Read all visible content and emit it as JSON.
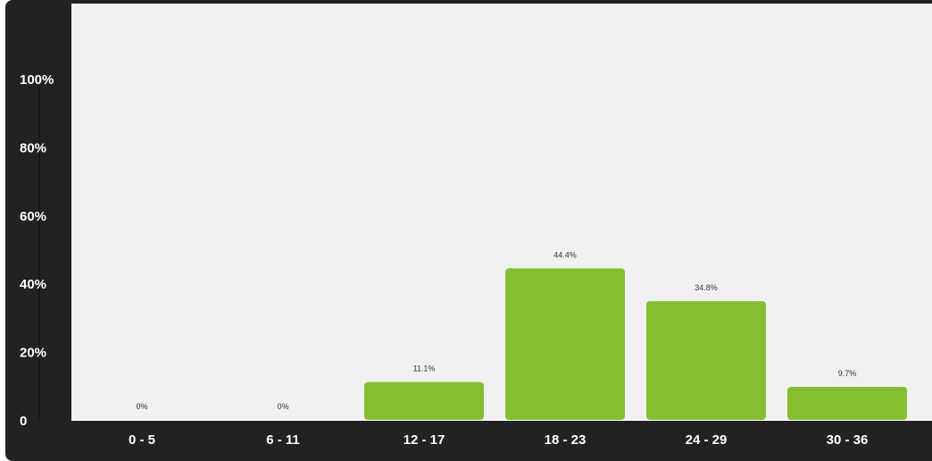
{
  "chart_data": {
    "type": "bar",
    "categories": [
      "0 - 5",
      "6 - 11",
      "12 - 17",
      "18 - 23",
      "24 - 29",
      "30 - 36"
    ],
    "values": [
      0,
      0,
      11.1,
      44.4,
      34.8,
      9.7
    ],
    "data_labels": [
      "0%",
      "0%",
      "11.1%",
      "44.4%",
      "34.8%",
      "9.7%"
    ],
    "y_ticks": [
      {
        "value": 0,
        "label": "0"
      },
      {
        "value": 20,
        "label": "20%"
      },
      {
        "value": 40,
        "label": "40%"
      },
      {
        "value": 60,
        "label": "60%"
      },
      {
        "value": 80,
        "label": "80%"
      },
      {
        "value": 100,
        "label": "100%"
      }
    ],
    "ylim": [
      0,
      100
    ],
    "grid": false,
    "legend": "none",
    "title": "",
    "xlabel": "",
    "ylabel": "",
    "colors": {
      "bar": "#85bf31",
      "frame": "#222222",
      "plot_background": "#f1f1f1",
      "axis_text": "#ffffff",
      "data_label_text": "#333333"
    }
  }
}
